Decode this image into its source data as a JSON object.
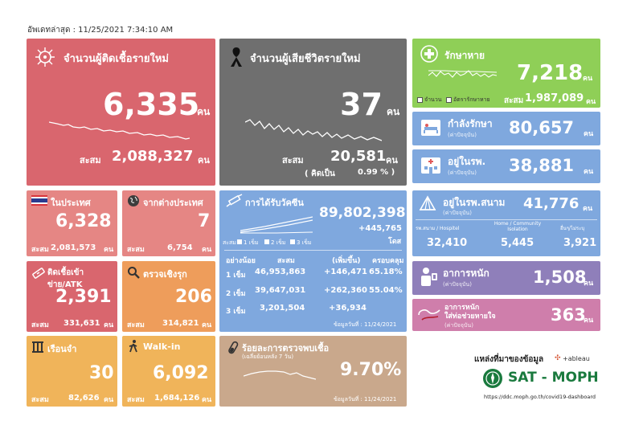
{
  "updated": "อัพเดทล่าสุด : 11/25/2021 7:34:10 AM",
  "new_cases": {
    "title": "จำนวนผู้ติดเชื้อรายใหม่",
    "value": "6,335",
    "unit": "คน",
    "acc_label": "สะสม",
    "acc_value": "2,088,327",
    "acc_unit": "คน"
  },
  "new_deaths": {
    "title": "จำนวนผู้เสียชีวิตรายใหม่",
    "value": "37",
    "unit": "คน",
    "acc_label": "สะสม",
    "acc_value": "20,581",
    "acc_unit": "คน",
    "pct_label": "( คิดเป็น",
    "pct_value": "0.99 % )"
  },
  "recovered": {
    "title": "รักษาหาย",
    "value": "7,218",
    "unit": "คน",
    "legend_daily": "จำนวน",
    "legend_acc": "อัตรารักษาหาย",
    "acc_label": "สะสม",
    "acc_value": "1,987,089",
    "acc_unit": "คน"
  },
  "hospitalized": {
    "title": "กำลังรักษา",
    "subtitle": "(ค่าปัจจุบัน)",
    "value": "80,657",
    "unit": "คน"
  },
  "in_hospital": {
    "title": "อยู่ในรพ.",
    "subtitle": "(ค่าปัจจุบัน)",
    "value": "38,881",
    "unit": "คน"
  },
  "domestic": {
    "title": "ในประเทศ",
    "value": "6,328",
    "acc_label": "สะสม",
    "acc_value": "2,081,573",
    "acc_unit": "คน"
  },
  "abroad": {
    "title": "จากต่างประเทศ",
    "value": "7",
    "acc_label": "สะสม",
    "acc_value": "6,754",
    "acc_unit": "คน"
  },
  "atk": {
    "title": "ติดเชื้อเข้าข่าย/ATK",
    "value": "2,391",
    "acc_label": "สะสม",
    "acc_value": "331,631",
    "acc_unit": "คน"
  },
  "active_search": {
    "title": "ตรวจเชิงรุก",
    "value": "206",
    "acc_label": "สะสม",
    "acc_value": "314,821",
    "acc_unit": "คน"
  },
  "prison": {
    "title": "เรือนจำ",
    "value": "30",
    "acc_label": "สะสม",
    "acc_value": "82,626",
    "acc_unit": "คน"
  },
  "walkin": {
    "title": "Walk-in",
    "value": "6,092",
    "acc_label": "สะสม",
    "acc_value": "1,684,126",
    "acc_unit": "คน"
  },
  "vaccine": {
    "title": "การได้รับวัคซีน",
    "total": "89,802,398",
    "daily": "+445,765",
    "dose_unit": "โดส",
    "legend_acc": "สะสม",
    "legend_1": "1 เข็ม",
    "legend_2": "2 เข็ม",
    "legend_3": "3 เข็ม",
    "headers": [
      "อย่างน้อย",
      "สะสม",
      "(เพิ่มขึ้น)",
      "ครอบคลุม"
    ],
    "rows": [
      [
        "1 เข็ม",
        "46,953,863",
        "+146,471",
        "65.18%"
      ],
      [
        "2 เข็ม",
        "39,647,031",
        "+262,360",
        "55.04%"
      ],
      [
        "3 เข็ม",
        "3,201,504",
        "+36,934",
        ""
      ]
    ],
    "data_date": "ข้อมูลวันที่ : 11/24/2021"
  },
  "field_hospital": {
    "title": "อยู่ในรพ.สนาม",
    "subtitle": "(ค่าปัจจุบัน)",
    "value": "41,776",
    "unit": "คน",
    "cols": [
      {
        "label": "รพ.สนาม / Hospitel",
        "value": "32,410"
      },
      {
        "label": "Home / Community Isolation",
        "value": "5,445"
      },
      {
        "label": "อื่นๆ/ไม่ระบุ",
        "value": "3,921"
      }
    ]
  },
  "severe": {
    "title": "อาการหนัก",
    "subtitle": "(ค่าปัจจุบัน)",
    "value": "1,508",
    "unit": "คน"
  },
  "ventilator": {
    "title": "อาการหนัก",
    "title2": "ใส่ท่อช่วยหายใจ",
    "subtitle": "(ค่าปัจจุบัน)",
    "value": "363",
    "unit": "คน"
  },
  "positivity": {
    "title": "ร้อยละการตรวจพบเชื้อ",
    "subtitle": "(เฉลี่ยย้อนหลัง 7 วัน)",
    "value": "9.70%",
    "data_date": "ข้อมูลวันที่ : 11/24/2021"
  },
  "source": {
    "label": "แหล่งที่มาของข้อมูล",
    "tableau": "+ableau",
    "brand": "SAT - MOPH",
    "url": "https://ddc.moph.go.th/covid19-dashboard"
  },
  "colors": {
    "cases": "#d9666e",
    "deaths": "#6f6f6f",
    "recovered": "#8fcf57",
    "blue": "#7fa8de",
    "lightred": "#e58684",
    "orange": "#ee9d5b",
    "yellow": "#f0b45a",
    "tan": "#c9a88c",
    "purple": "#8f7fba",
    "pink": "#cf7eab",
    "green_brand": "#1a7a3e"
  }
}
